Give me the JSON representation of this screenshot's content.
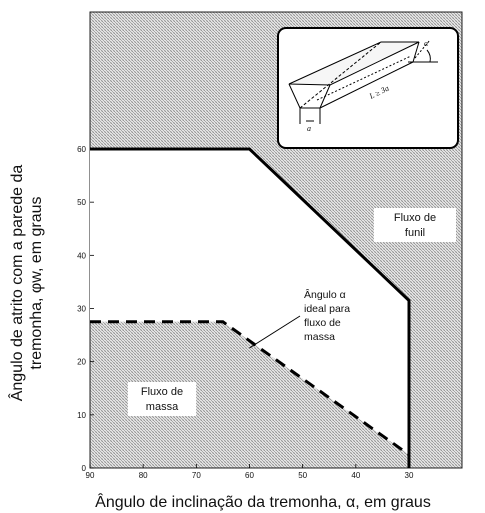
{
  "chart_data": {
    "type": "area",
    "xlabel": "Ângulo de inclinação da tremonha, α, em graus",
    "ylabel_lines": [
      "Ângulo de atrito com a parede da",
      "tremonha, φw, em graus"
    ],
    "xlim": [
      90,
      30
    ],
    "ylim": [
      0,
      70
    ],
    "x_reversed": true,
    "xticks": [
      90,
      80,
      70,
      60,
      50,
      40,
      30
    ],
    "yticks": [
      0,
      10,
      20,
      30,
      40,
      50,
      60
    ],
    "grid": false,
    "upper_boundary": {
      "style": "solid",
      "x": [
        90,
        60,
        30,
        30
      ],
      "y": [
        60,
        60,
        31.5,
        0
      ]
    },
    "mass_flow_boundary": {
      "style": "dashed",
      "x": [
        90,
        65,
        30
      ],
      "y": [
        27.5,
        27.5,
        2.5
      ]
    },
    "regions": {
      "funnel_flow_lines": [
        "Fluxo de",
        "funil"
      ],
      "mass_flow_lines": [
        "Fluxo de",
        "massa"
      ]
    },
    "annotation_lines": [
      "Ângulo α",
      "ideal para",
      "fluxo de",
      "massa"
    ],
    "inset": {
      "alpha_label": "α",
      "length_label": "L ≥ 3a",
      "width_label": "a"
    }
  }
}
